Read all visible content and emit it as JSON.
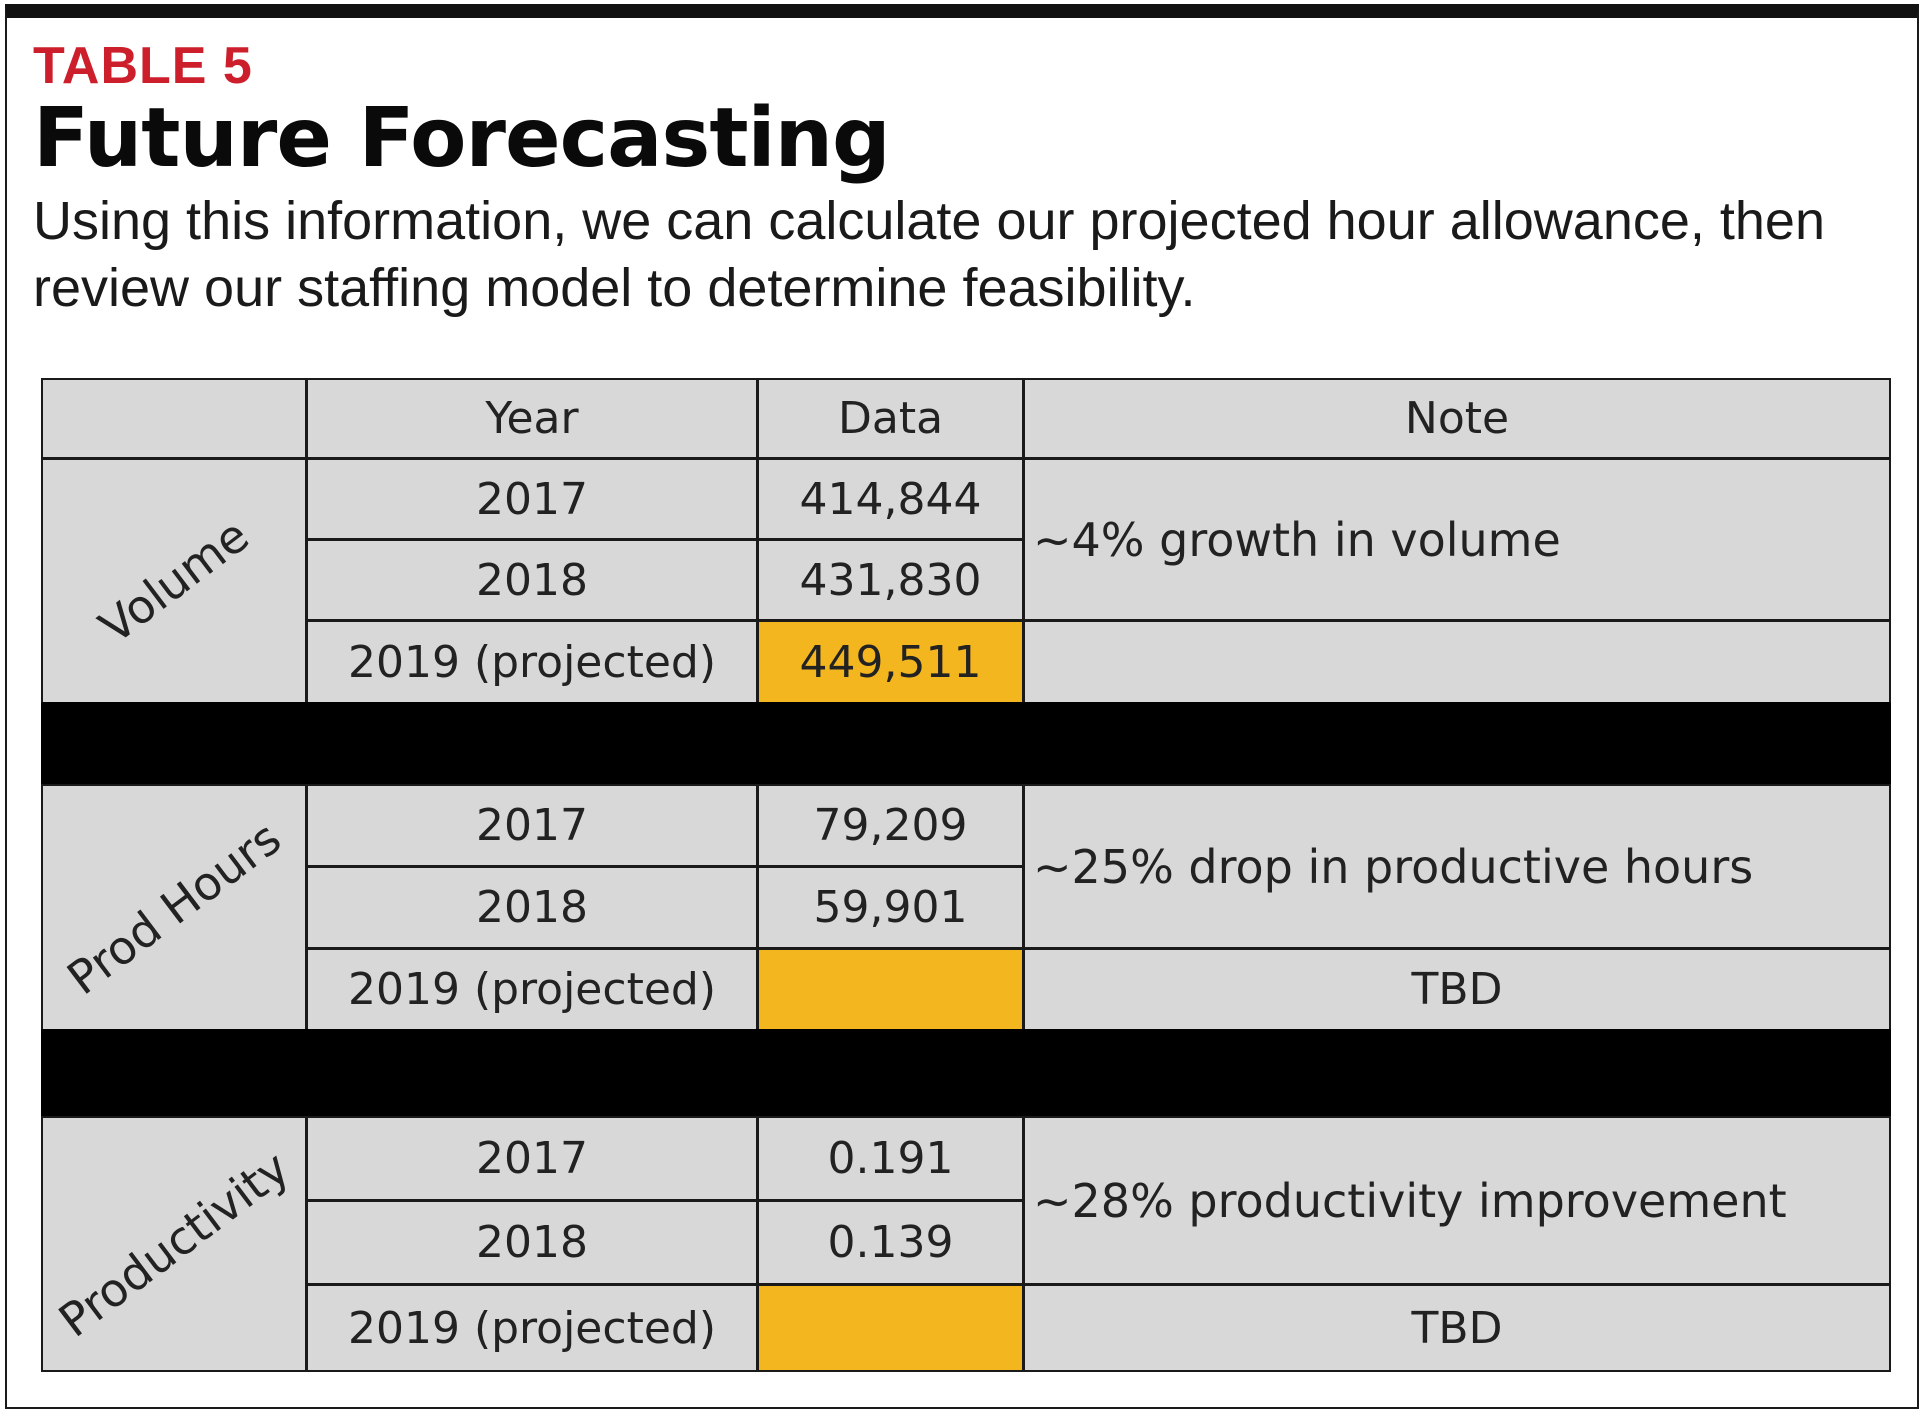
{
  "header": {
    "label": "TABLE 5",
    "title": "Future Forecasting",
    "subtitle": "Using this information, we can calculate our projected hour allowance, then review our staffing model to determine feasibility."
  },
  "table": {
    "columns": [
      "",
      "Year",
      "Data",
      "Note"
    ],
    "sections": [
      {
        "category": "Volume",
        "rows": [
          {
            "year": "2017",
            "data": "414,844"
          },
          {
            "year": "2018",
            "data": "431,830"
          },
          {
            "year": "2019 (projected)",
            "data": "449,511",
            "highlighted": true
          }
        ],
        "note": "~4% growth in volume",
        "projected_note": ""
      },
      {
        "category": "Prod Hours",
        "rows": [
          {
            "year": "2017",
            "data": "79,209"
          },
          {
            "year": "2018",
            "data": "59,901"
          },
          {
            "year": "2019 (projected)",
            "data": "",
            "highlighted": true
          }
        ],
        "note": "~25% drop in productive hours",
        "projected_note": "TBD"
      },
      {
        "category": "Productivity",
        "rows": [
          {
            "year": "2017",
            "data": "0.191"
          },
          {
            "year": "2018",
            "data": "0.139"
          },
          {
            "year": "2019 (projected)",
            "data": "",
            "highlighted": true
          }
        ],
        "note": "~28% productivity improvement",
        "projected_note": "TBD"
      }
    ]
  },
  "colors": {
    "label_red": "#cc1f2b",
    "cell_gray": "#d8d8d8",
    "highlight_yellow": "#f4b61f",
    "band_black": "#000000"
  }
}
